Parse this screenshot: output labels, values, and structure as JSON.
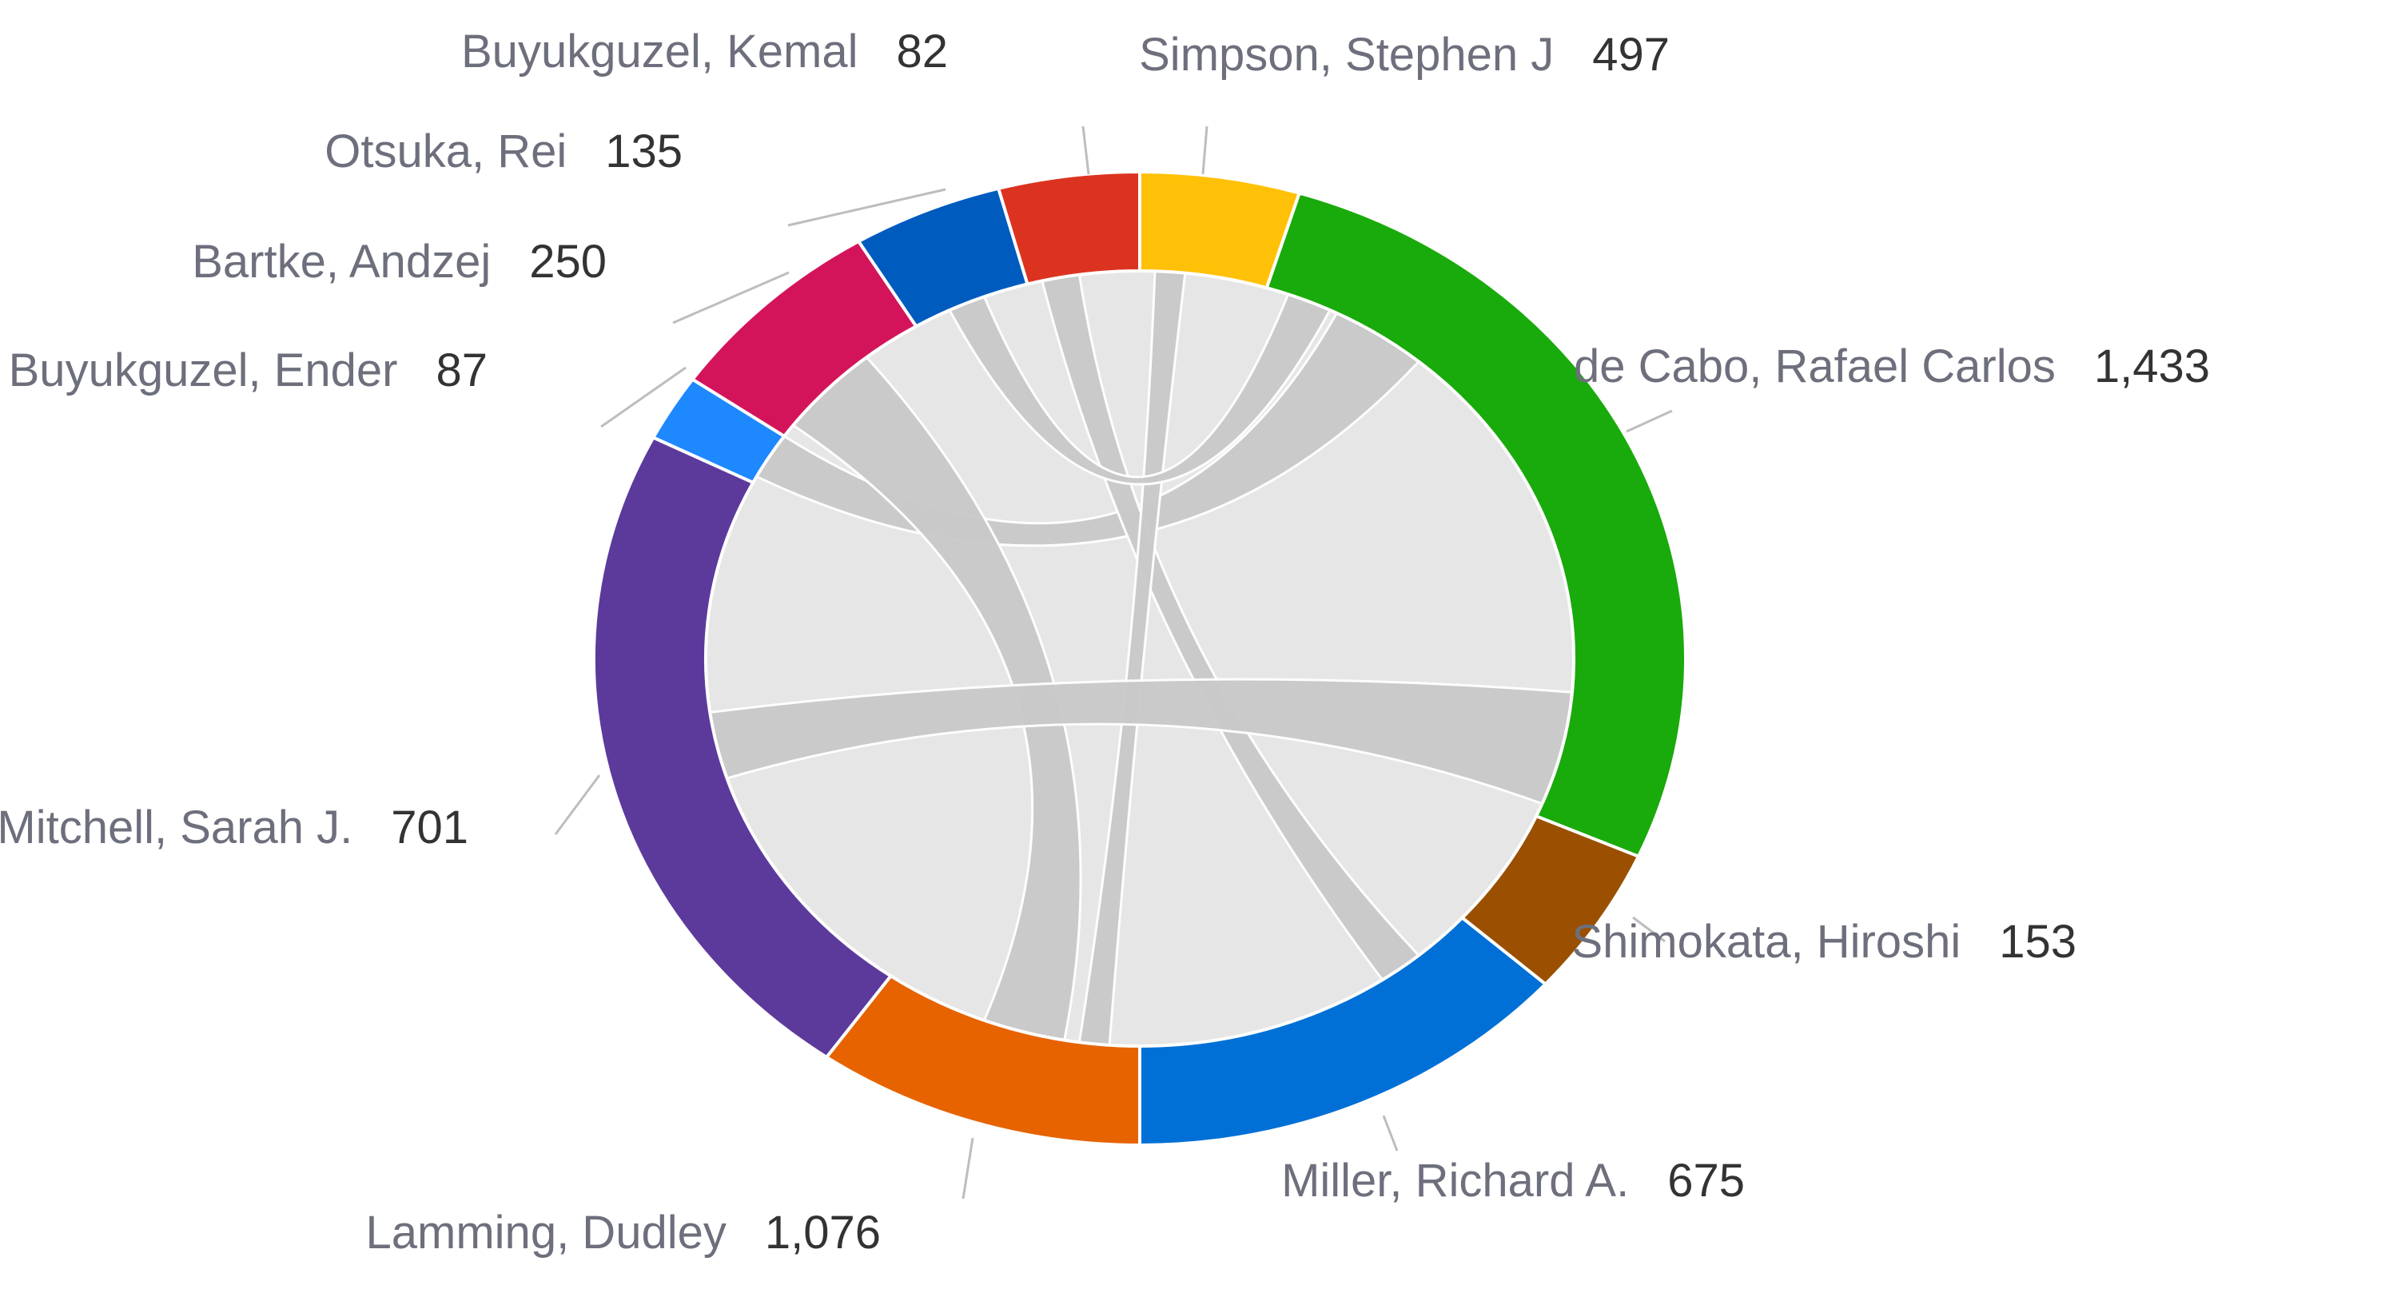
{
  "chart_data": {
    "type": "chord",
    "title": "",
    "segments": [
      {
        "name": "Simpson, Stephen J",
        "value": 497,
        "color": "#ffc107"
      },
      {
        "name": "de Cabo, Rafael Carlos",
        "value": 1433,
        "color": "#19aa0b"
      },
      {
        "name": "Shimokata, Hiroshi",
        "value": 153,
        "color": "#9a5000"
      },
      {
        "name": "Miller, Richard A.",
        "value": 675,
        "color": "#0070d6"
      },
      {
        "name": "Lamming, Dudley",
        "value": 1076,
        "color": "#e66300"
      },
      {
        "name": "Mitchell, Sarah J.",
        "value": 701,
        "color": "#5c3a9c"
      },
      {
        "name": "Buyukguzel, Ender",
        "value": 87,
        "color": "#1e88ff"
      },
      {
        "name": "Bartke, Andzej",
        "value": 250,
        "color": "#d4145a"
      },
      {
        "name": "Otsuka, Rei",
        "value": 135,
        "color": "#005bbf"
      },
      {
        "name": "Buyukguzel, Kemal",
        "value": 82,
        "color": "#dc3320"
      }
    ],
    "ribbon_color": "#c9c9c9",
    "disc_color": "#e6e6e6"
  }
}
